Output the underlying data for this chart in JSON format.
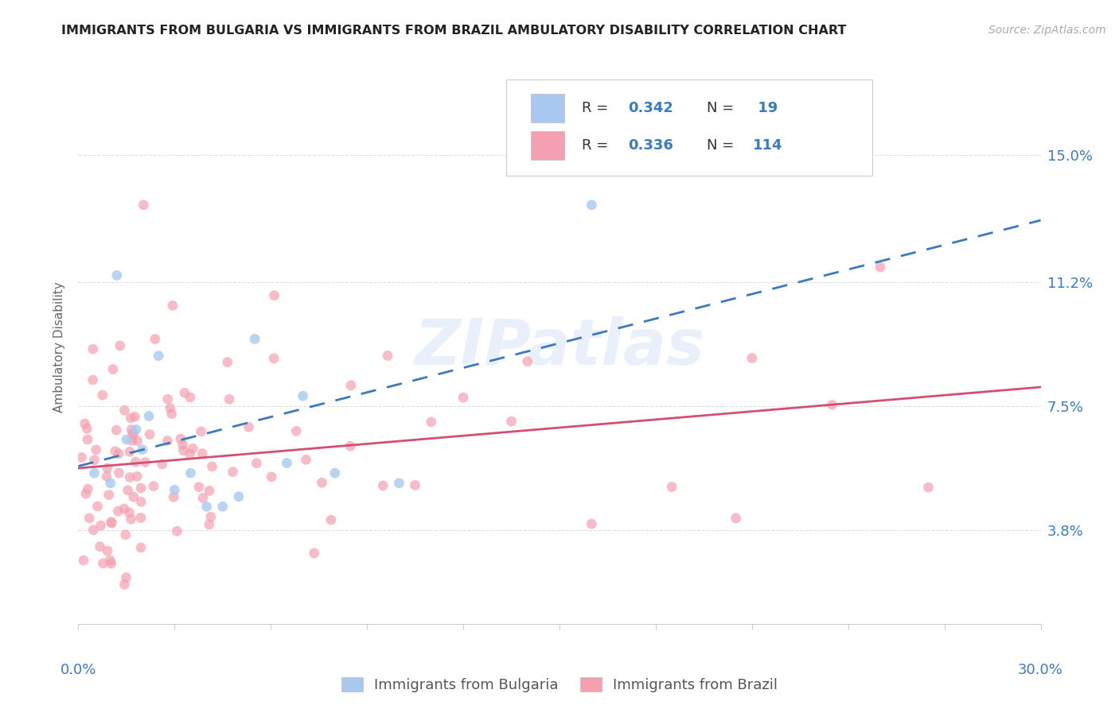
{
  "title": "IMMIGRANTS FROM BULGARIA VS IMMIGRANTS FROM BRAZIL AMBULATORY DISABILITY CORRELATION CHART",
  "source": "Source: ZipAtlas.com",
  "ylabel": "Ambulatory Disability",
  "watermark": "ZIPatlas",
  "bulgaria_color": "#a8c8f0",
  "brazil_color": "#f4a0b0",
  "regression_bulgaria_color": "#3a7abf",
  "regression_brazil_color": "#d45070",
  "bg_color": "#ffffff",
  "grid_color": "#dddddd",
  "xlim": [
    0.0,
    30.0
  ],
  "ylim": [
    1.0,
    17.5
  ],
  "ytick_vals": [
    3.8,
    7.5,
    11.2,
    15.0
  ],
  "ytick_labels": [
    "3.8%",
    "7.5%",
    "11.2%",
    "15.0%"
  ],
  "legend_r_bg": "0.342",
  "legend_n_bg": "19",
  "legend_r_bz": "0.336",
  "legend_n_bz": "114",
  "bulgaria_x": [
    0.5,
    1.0,
    1.2,
    1.5,
    1.8,
    2.0,
    2.2,
    2.5,
    3.0,
    3.5,
    4.0,
    4.5,
    5.0,
    5.5,
    6.5,
    7.0,
    8.0,
    10.0,
    16.0
  ],
  "bulgaria_y": [
    5.5,
    5.2,
    11.4,
    6.5,
    6.8,
    6.2,
    7.2,
    9.0,
    5.0,
    5.5,
    4.5,
    4.5,
    4.8,
    9.5,
    5.8,
    7.8,
    5.5,
    5.2,
    13.5
  ]
}
